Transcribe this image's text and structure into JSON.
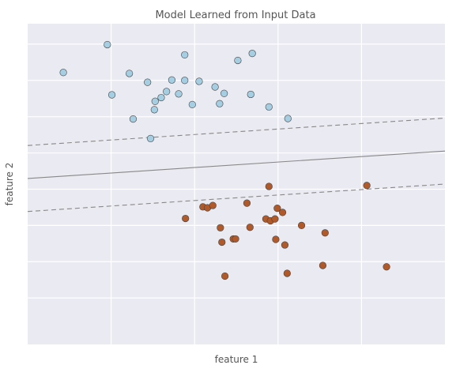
{
  "chart_data": {
    "type": "scatter",
    "title": "Model Learned from Input Data",
    "xlabel": "feature 1",
    "ylabel": "feature 2",
    "xlim": [
      -1.5,
      4
    ],
    "ylim": [
      -1.0,
      5.9
    ],
    "x_gridlines": [
      -0.4,
      0.7,
      1.8,
      2.9
    ],
    "y_gridlines": [
      0.0,
      0.78,
      1.56,
      2.34,
      3.12,
      3.9,
      4.68,
      5.46
    ],
    "grid": true,
    "background": "#EAEAF2",
    "series": [
      {
        "color": "#A6CEE3",
        "edge": "#444444",
        "points": [
          [
            -1.03,
            4.85
          ],
          [
            -0.45,
            5.45
          ],
          [
            -0.39,
            4.37
          ],
          [
            -0.16,
            4.83
          ],
          [
            -0.11,
            3.85
          ],
          [
            0.08,
            4.64
          ],
          [
            0.12,
            3.43
          ],
          [
            0.18,
            4.23
          ],
          [
            0.17,
            4.05
          ],
          [
            0.26,
            4.31
          ],
          [
            0.33,
            4.44
          ],
          [
            0.4,
            4.69
          ],
          [
            0.49,
            4.39
          ],
          [
            0.57,
            5.23
          ],
          [
            0.57,
            4.68
          ],
          [
            0.67,
            4.16
          ],
          [
            0.76,
            4.66
          ],
          [
            0.97,
            4.54
          ],
          [
            1.03,
            4.18
          ],
          [
            1.09,
            4.4
          ],
          [
            1.27,
            5.11
          ],
          [
            1.44,
            4.38
          ],
          [
            1.46,
            5.26
          ],
          [
            1.68,
            4.11
          ],
          [
            1.93,
            3.86
          ]
        ]
      },
      {
        "color": "#B15928",
        "edge": "#444444",
        "points": [
          [
            0.58,
            1.71
          ],
          [
            0.81,
            1.96
          ],
          [
            0.87,
            1.94
          ],
          [
            0.94,
            1.99
          ],
          [
            1.04,
            1.51
          ],
          [
            1.06,
            1.2
          ],
          [
            1.1,
            0.47
          ],
          [
            1.21,
            1.27
          ],
          [
            1.24,
            1.27
          ],
          [
            1.39,
            2.04
          ],
          [
            1.43,
            1.52
          ],
          [
            1.64,
            1.7
          ],
          [
            1.68,
            2.4
          ],
          [
            1.7,
            1.66
          ],
          [
            1.76,
            1.7
          ],
          [
            1.77,
            1.26
          ],
          [
            1.79,
            1.93
          ],
          [
            1.86,
            1.84
          ],
          [
            1.89,
            1.14
          ],
          [
            1.92,
            0.53
          ],
          [
            2.11,
            1.56
          ],
          [
            2.39,
            0.7
          ],
          [
            2.42,
            1.4
          ],
          [
            2.97,
            2.42
          ],
          [
            3.23,
            0.67
          ]
        ]
      }
    ],
    "lines": [
      {
        "style": "solid",
        "color": "#888888",
        "points": [
          [
            -1.5,
            2.57
          ],
          [
            4.0,
            3.16
          ]
        ]
      },
      {
        "style": "dashed",
        "color": "#888888",
        "points": [
          [
            -1.5,
            3.28
          ],
          [
            4.0,
            3.87
          ]
        ]
      },
      {
        "style": "dashed",
        "color": "#888888",
        "points": [
          [
            -1.5,
            1.86
          ],
          [
            4.0,
            2.45
          ]
        ]
      }
    ]
  }
}
